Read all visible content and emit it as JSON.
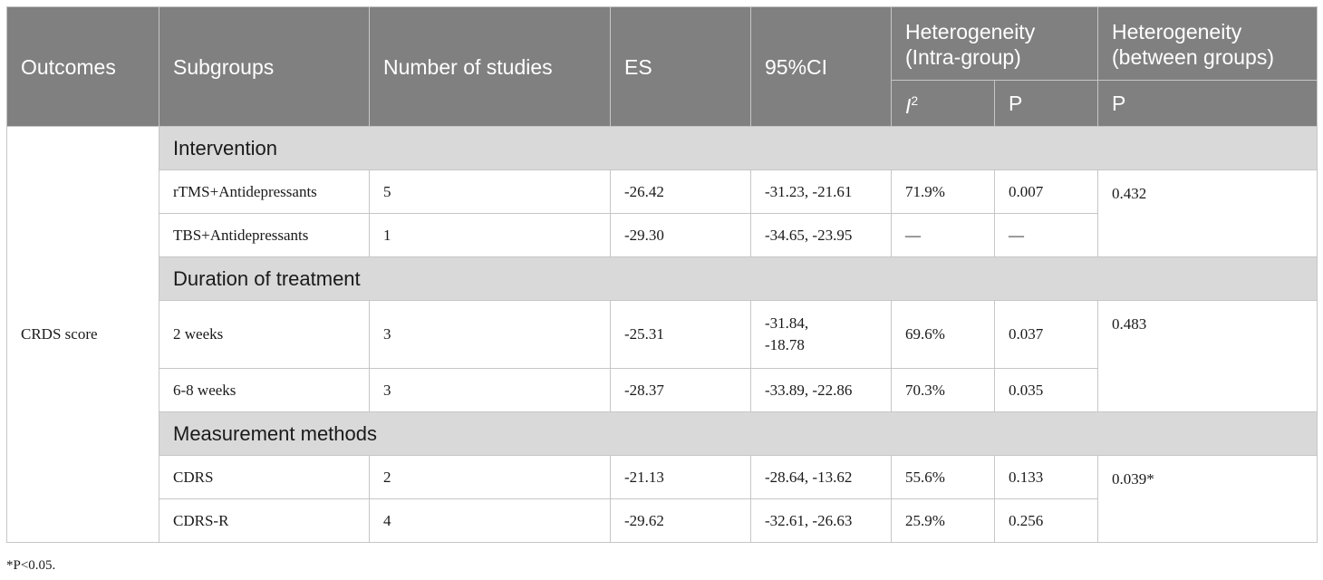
{
  "header": {
    "outcomes": "Outcomes",
    "subgroups": "Subgroups",
    "number_of_studies": "Number of studies",
    "es": "ES",
    "ci": "95%CI",
    "hetero_intra_line1": "Heterogeneity",
    "hetero_intra_line2": "(Intra-group)",
    "hetero_between_line1": "Heterogeneity",
    "hetero_between_line2": "(between groups)",
    "i_letter": "I",
    "i_sup": "2",
    "p_intra": "P",
    "p_between": "P"
  },
  "outcome": "CRDS score",
  "sections": [
    {
      "title": "Intervention",
      "between_p": "0.432",
      "rows": [
        {
          "subgroup": "rTMS+Antidepressants",
          "n": "5",
          "es": "-26.42",
          "ci": "-31.23, -21.61",
          "i2": "71.9%",
          "p": "0.007"
        },
        {
          "subgroup": "TBS+Antidepressants",
          "n": "1",
          "es": "-29.30",
          "ci": "-34.65, -23.95",
          "i2": "—",
          "p": "—"
        }
      ]
    },
    {
      "title": "Duration of treatment",
      "between_p": "0.483",
      "rows": [
        {
          "subgroup": "2 weeks",
          "n": "3",
          "es": "-25.31",
          "ci_line1": "-31.84,",
          "ci_line2": "-18.78",
          "i2": "69.6%",
          "p": "0.037"
        },
        {
          "subgroup": "6-8 weeks",
          "n": "3",
          "es": "-28.37",
          "ci": "-33.89, -22.86",
          "i2": "70.3%",
          "p": "0.035"
        }
      ]
    },
    {
      "title": "Measurement methods",
      "between_p": "0.039*",
      "rows": [
        {
          "subgroup": "CDRS",
          "n": "2",
          "es": "-21.13",
          "ci": "-28.64, -13.62",
          "i2": "55.6%",
          "p": "0.133"
        },
        {
          "subgroup": "CDRS-R",
          "n": "4",
          "es": "-29.62",
          "ci": "-32.61, -26.63",
          "i2": "25.9%",
          "p": "0.256"
        }
      ]
    }
  ],
  "footnote": "*P<0.05."
}
